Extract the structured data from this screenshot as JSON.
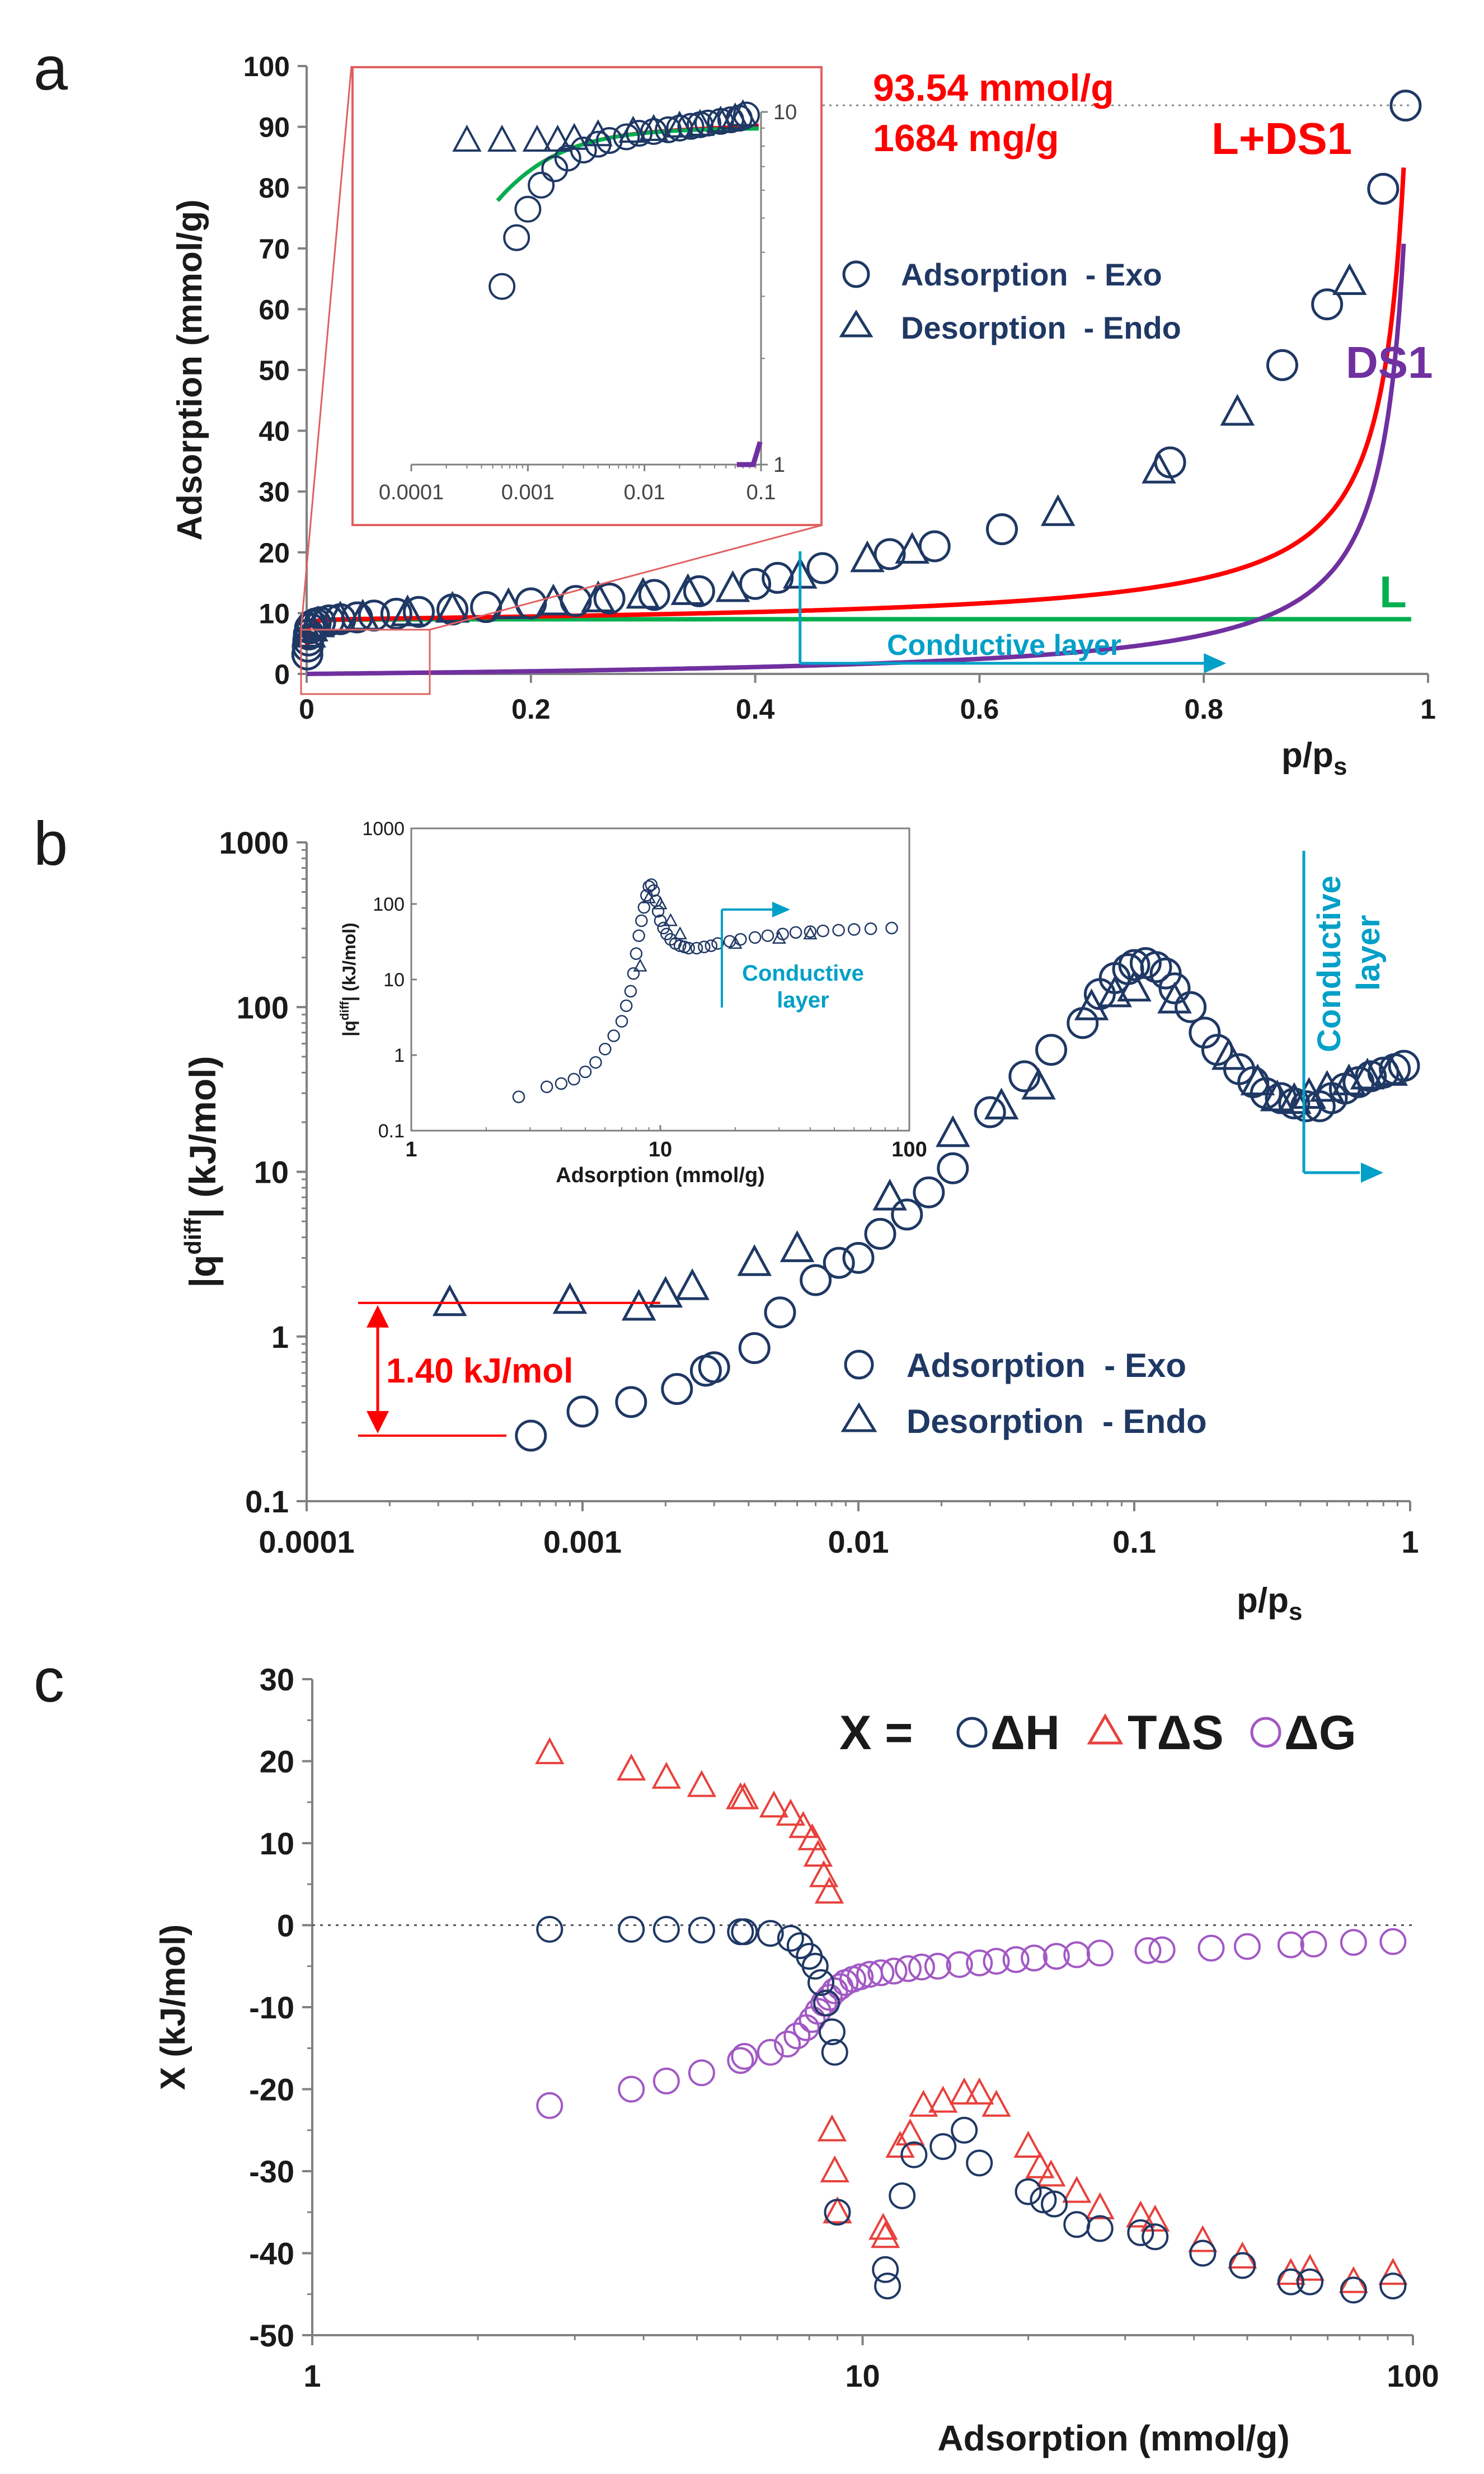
{
  "colors": {
    "navy": "#1f3864",
    "red": "#ff0000",
    "green": "#00b050",
    "purple": "#7030a0",
    "cyan": "#00a0c8",
    "tri_red": "#e8413c",
    "circ_purple": "#a259c4",
    "inset_box": "#e06060",
    "axis": "#808080"
  },
  "chart_data": [
    {
      "id": "a",
      "panel_label": "a",
      "type": "scatter",
      "xlabel": "p/p",
      "xlabel_sub": "s",
      "ylabel": "Adsorption (mmol/g)",
      "xlim": [
        0,
        1
      ],
      "ylim": [
        0,
        100
      ],
      "xticks": [
        0,
        0.2,
        0.4,
        0.6,
        0.8,
        1
      ],
      "xtick_labels": [
        "0",
        "0.2",
        "0.4",
        "0.6",
        "0.8",
        "1"
      ],
      "yticks": [
        0,
        10,
        20,
        30,
        40,
        50,
        60,
        70,
        80,
        90,
        100
      ],
      "ytick_labels": [
        "0",
        "10",
        "20",
        "30",
        "40",
        "50",
        "60",
        "70",
        "80",
        "90",
        "100"
      ],
      "annotations": {
        "capacity_mmol": "93.54 mmol/g",
        "capacity_mg": "1684 mg/g",
        "reference_y": 93.54,
        "conductive_label": "Conductive layer",
        "conductive_x_start": 0.44,
        "conductive_x_end": 0.82
      },
      "legend": {
        "position": "upper-right",
        "entries": [
          "Adsorption  - Exo",
          "Desorption  - Endo"
        ]
      },
      "curve_labels": {
        "combined": "L+DS1",
        "ds1": "DS1",
        "langmuir": "L"
      },
      "series": [
        {
          "name": "Adsorption - Exo",
          "marker": "circle",
          "x": [
            0.0006,
            0.001,
            0.0015,
            0.002,
            0.003,
            0.005,
            0.008,
            0.012,
            0.02,
            0.03,
            0.045,
            0.06,
            0.08,
            0.1,
            0.13,
            0.16,
            0.2,
            0.24,
            0.27,
            0.31,
            0.35,
            0.4,
            0.42,
            0.46,
            0.52,
            0.56,
            0.62,
            0.77,
            0.87,
            0.91,
            0.96,
            0.98
          ],
          "y": [
            3.2,
            4.5,
            5.5,
            6.5,
            7.5,
            8.0,
            8.3,
            8.5,
            8.8,
            9.0,
            9.3,
            9.6,
            9.9,
            10.2,
            10.6,
            11.0,
            11.6,
            12.0,
            12.4,
            13.0,
            13.6,
            14.8,
            15.8,
            17.4,
            19.7,
            21.0,
            23.8,
            34.8,
            50.8,
            60.8,
            79.8,
            93.5
          ]
        },
        {
          "name": "Desorption - Endo",
          "marker": "triangle",
          "x": [
            0.002,
            0.004,
            0.01,
            0.03,
            0.05,
            0.09,
            0.13,
            0.18,
            0.22,
            0.26,
            0.3,
            0.34,
            0.38,
            0.44,
            0.5,
            0.54,
            0.67,
            0.76,
            0.83,
            0.93
          ],
          "y": [
            6.5,
            7.5,
            8.2,
            9.0,
            9.3,
            10.0,
            10.6,
            11.2,
            11.8,
            12.3,
            12.9,
            13.5,
            14.0,
            16.2,
            18.9,
            20.3,
            26.5,
            33.5,
            43.0,
            64.5
          ]
        }
      ],
      "inset": {
        "xscale": "log",
        "yscale": "log",
        "xlim": [
          0.0001,
          0.1
        ],
        "ylim": [
          1,
          10
        ],
        "xtick_labels": [
          "0.0001",
          "0.001",
          "0.01",
          "0.1"
        ],
        "ytick_labels": [
          "1",
          "10"
        ],
        "circles_x": [
          0.0006,
          0.0008,
          0.001,
          0.0013,
          0.0017,
          0.0022,
          0.003,
          0.004,
          0.005,
          0.007,
          0.009,
          0.012,
          0.016,
          0.02,
          0.025,
          0.03,
          0.035,
          0.045,
          0.055,
          0.065,
          0.075
        ],
        "circles_y": [
          3.2,
          4.4,
          5.3,
          6.2,
          6.9,
          7.4,
          7.8,
          8.1,
          8.3,
          8.5,
          8.7,
          8.8,
          8.9,
          9.0,
          9.1,
          9.2,
          9.3,
          9.4,
          9.5,
          9.6,
          9.8
        ],
        "triangles_x": [
          0.0003,
          0.0006,
          0.0012,
          0.0018,
          0.0025,
          0.004,
          0.008,
          0.012,
          0.02,
          0.03,
          0.045,
          0.06,
          0.07
        ],
        "triangles_y": [
          8.3,
          8.3,
          8.3,
          8.3,
          8.4,
          8.6,
          8.8,
          8.9,
          9.1,
          9.2,
          9.4,
          9.6,
          9.8
        ]
      }
    },
    {
      "id": "b",
      "panel_label": "b",
      "type": "scatter",
      "xscale": "log",
      "yscale": "log",
      "xlabel": "p/p",
      "xlabel_sub": "s",
      "ylabel_pre": "|q",
      "ylabel_sup": "diff",
      "ylabel_post": "| (kJ/mol)",
      "xlim": [
        0.0001,
        1
      ],
      "ylim": [
        0.1,
        1000
      ],
      "xtick_labels": [
        "0.0001",
        "0.001",
        "0.01",
        "0.1",
        "1"
      ],
      "ytick_labels": [
        "0.1",
        "1",
        "10",
        "100",
        "1000"
      ],
      "annotations": {
        "difference_label": "1.40 kJ/mol",
        "difference_top_y": 1.6,
        "difference_bottom_y": 0.25,
        "conductive_label_line1": "Conductive",
        "conductive_label_line2": "layer"
      },
      "legend": {
        "position": "lower-center",
        "entries": [
          "Adsorption  - Exo",
          "Desorption  - Endo"
        ]
      },
      "series": [
        {
          "name": "Adsorption - Exo",
          "marker": "circle",
          "x": [
            0.00065,
            0.001,
            0.0015,
            0.0022,
            0.0028,
            0.003,
            0.0042,
            0.0052,
            0.007,
            0.0085,
            0.01,
            0.012,
            0.015,
            0.018,
            0.022,
            0.03,
            0.04,
            0.05,
            0.065,
            0.075,
            0.085,
            0.095,
            0.1,
            0.11,
            0.12,
            0.13,
            0.14,
            0.16,
            0.18,
            0.2,
            0.24,
            0.27,
            0.3,
            0.34,
            0.38,
            0.42,
            0.47,
            0.52,
            0.58,
            0.65,
            0.72,
            0.8,
            0.88,
            0.95
          ],
          "y": [
            0.25,
            0.35,
            0.4,
            0.48,
            0.62,
            0.65,
            0.85,
            1.4,
            2.2,
            2.8,
            3.0,
            4.2,
            5.5,
            7.5,
            10.5,
            23,
            38,
            55,
            80,
            120,
            150,
            170,
            180,
            185,
            175,
            160,
            130,
            100,
            70,
            55,
            42,
            35,
            30,
            28,
            26,
            25,
            25,
            28,
            32,
            35,
            38,
            40,
            42,
            44
          ]
        },
        {
          "name": "Desorption - Endo",
          "marker": "triangle",
          "x": [
            0.00033,
            0.0009,
            0.0016,
            0.002,
            0.0025,
            0.0042,
            0.006,
            0.013,
            0.022,
            0.033,
            0.045,
            0.07,
            0.085,
            0.1,
            0.14,
            0.22,
            0.28,
            0.33,
            0.38,
            0.43,
            0.5,
            0.6,
            0.7,
            0.85
          ],
          "y": [
            1.6,
            1.65,
            1.5,
            1.8,
            2.0,
            2.8,
            3.4,
            7.0,
            17,
            25,
            33,
            100,
            120,
            130,
            110,
            50,
            35,
            28,
            27,
            29,
            32,
            35,
            38,
            40
          ]
        }
      ],
      "inset": {
        "xscale": "log",
        "yscale": "log",
        "xlim": [
          1,
          100
        ],
        "ylim": [
          0.1,
          1000
        ],
        "xlabel": "Adsorption (mmol/g)",
        "ylabel_pre": "|q",
        "ylabel_sup": "diff",
        "ylabel_post": "| (kJ/mol)",
        "xtick_labels": [
          "1",
          "10",
          "100"
        ],
        "ytick_labels": [
          "0.1",
          "1",
          "10",
          "100",
          "1000"
        ],
        "conductive_label_line1": "Conductive",
        "conductive_label_line2": "layer",
        "circles_x": [
          2.7,
          3.5,
          4.0,
          4.5,
          5.0,
          5.5,
          6.0,
          6.5,
          7.0,
          7.3,
          7.6,
          7.8,
          8.0,
          8.2,
          8.4,
          8.6,
          8.8,
          9.0,
          9.2,
          9.4,
          9.6,
          9.8,
          10.0,
          10.3,
          10.6,
          11.0,
          11.5,
          12.0,
          12.5,
          13.0,
          14.0,
          15.0,
          16.0,
          17.0,
          19.0,
          21.0,
          24.0,
          27.0,
          31.0,
          35.0,
          40.0,
          45.0,
          52.0,
          60.0,
          70.0,
          85.0
        ],
        "circles_y": [
          0.28,
          0.38,
          0.42,
          0.48,
          0.6,
          0.8,
          1.2,
          1.8,
          2.8,
          4.5,
          7.0,
          12.0,
          22.0,
          38.0,
          60.0,
          90.0,
          130.0,
          170.0,
          180.0,
          150.0,
          110.0,
          80.0,
          60.0,
          48.0,
          40.0,
          34.0,
          30.0,
          28.0,
          27.0,
          26.0,
          26.0,
          27.0,
          28.0,
          30.0,
          32.0,
          34.0,
          36.0,
          38.0,
          40.0,
          42.0,
          43.0,
          44.0,
          45.0,
          46.0,
          47.0,
          48.0
        ],
        "triangles_x": [
          8.3,
          9.0,
          10.0,
          11.0,
          12.0,
          20.0,
          30.0,
          40.0
        ],
        "triangles_y": [
          15.0,
          120.0,
          100.0,
          60.0,
          40.0,
          30.0,
          35.0,
          40.0
        ]
      }
    },
    {
      "id": "c",
      "panel_label": "c",
      "type": "scatter",
      "xscale": "log",
      "xlabel": "Adsorption (mmol/g)",
      "ylabel": "X (kJ/mol)",
      "xlim": [
        1,
        100
      ],
      "ylim": [
        -50,
        30
      ],
      "xtick_labels": [
        "1",
        "10",
        "100"
      ],
      "yticks": [
        -50,
        -40,
        -30,
        -20,
        -10,
        0,
        10,
        20,
        30
      ],
      "ytick_labels": [
        "-50",
        "-40",
        "-30",
        "-20",
        "-10",
        "0",
        "10",
        "20",
        "30"
      ],
      "legend": {
        "position": "top-right",
        "prefix": "X =",
        "entries": [
          "ΔH",
          "TΔS",
          "ΔG"
        ]
      },
      "series": [
        {
          "name": "ΔH",
          "marker": "circle",
          "x": [
            2.7,
            3.8,
            4.4,
            5.1,
            6.0,
            6.1,
            6.8,
            7.4,
            7.7,
            8.0,
            8.2,
            8.4,
            8.6,
            8.8,
            8.9,
            9.0,
            11.0,
            11.1,
            11.8,
            12.4,
            14.0,
            15.3,
            16.3,
            20.0,
            21.3,
            22.3,
            24.5,
            27.0,
            32.0,
            34.0,
            41.5,
            49.0,
            60.0,
            65.0,
            78.0,
            92.0
          ],
          "y": [
            -0.5,
            -0.5,
            -0.5,
            -0.6,
            -0.8,
            -0.8,
            -1.0,
            -1.6,
            -2.5,
            -3.8,
            -5.0,
            -7.0,
            -9.5,
            -13.0,
            -15.5,
            -35.0,
            -42.0,
            -44.0,
            -33.0,
            -28.0,
            -27.0,
            -25.0,
            -29.0,
            -32.5,
            -33.5,
            -34.0,
            -36.5,
            -37.0,
            -37.5,
            -38.0,
            -40.0,
            -41.5,
            -43.5,
            -43.5,
            -44.5,
            -44.0
          ]
        },
        {
          "name": "TΔS",
          "marker": "triangle",
          "x": [
            2.7,
            3.8,
            4.4,
            5.1,
            6.0,
            6.1,
            6.9,
            7.4,
            7.8,
            8.1,
            8.3,
            8.5,
            8.7,
            8.8,
            8.9,
            9.0,
            10.9,
            11.0,
            11.7,
            12.2,
            12.9,
            14.0,
            15.3,
            16.3,
            17.5,
            20.0,
            21.0,
            22.0,
            24.5,
            27.0,
            32.0,
            34.0,
            41.5,
            49.0,
            60.0,
            65.0,
            78.0,
            92.0
          ],
          "y": [
            21.0,
            19.0,
            18.0,
            17.0,
            15.5,
            15.5,
            14.5,
            13.5,
            12.0,
            10.5,
            8.5,
            6.0,
            4.0,
            -25.0,
            -30.0,
            -35.0,
            -37.0,
            -38.0,
            -27.0,
            -25.5,
            -22.0,
            -21.5,
            -20.5,
            -20.5,
            -22.0,
            -27.0,
            -29.5,
            -30.5,
            -32.5,
            -34.5,
            -35.5,
            -36.0,
            -38.5,
            -40.5,
            -42.5,
            -42.0,
            -43.5,
            -42.5
          ]
        },
        {
          "name": "ΔG",
          "marker": "circle",
          "x": [
            2.7,
            3.8,
            4.4,
            5.1,
            6.0,
            6.1,
            6.8,
            7.3,
            7.6,
            7.9,
            8.1,
            8.3,
            8.5,
            8.7,
            8.9,
            9.1,
            9.3,
            9.6,
            9.9,
            10.3,
            10.8,
            11.4,
            12.1,
            12.8,
            13.7,
            15.0,
            16.3,
            17.5,
            19.0,
            20.5,
            22.5,
            24.5,
            27.0,
            33.0,
            35.0,
            43.0,
            50.0,
            60.0,
            66.0,
            78.0,
            92.0
          ],
          "y": [
            -22.0,
            -20.0,
            -19.0,
            -18.0,
            -16.5,
            -16.0,
            -15.5,
            -14.5,
            -13.5,
            -12.5,
            -11.5,
            -10.5,
            -9.5,
            -8.8,
            -8.0,
            -7.5,
            -7.0,
            -6.6,
            -6.3,
            -6.0,
            -5.8,
            -5.6,
            -5.3,
            -5.1,
            -5.0,
            -4.8,
            -4.6,
            -4.4,
            -4.2,
            -4.0,
            -3.8,
            -3.6,
            -3.4,
            -3.1,
            -3.0,
            -2.8,
            -2.6,
            -2.4,
            -2.3,
            -2.1,
            -2.0
          ]
        }
      ]
    }
  ]
}
